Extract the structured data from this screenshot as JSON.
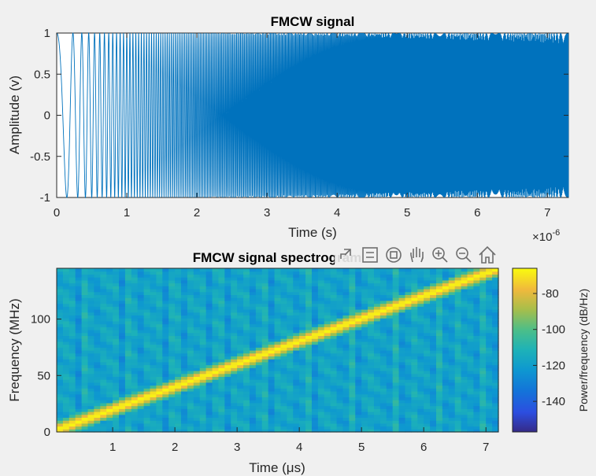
{
  "chart_data": [
    {
      "type": "line",
      "title": "FMCW signal",
      "xlabel": "Time (s)",
      "ylabel": "Amplitude (v)",
      "x_exponent_label": "×10",
      "x_exponent_power": "-6",
      "xlim": [
        0,
        7.3e-06
      ],
      "ylim": [
        -1,
        1
      ],
      "xticks": [
        0,
        1,
        2,
        3,
        4,
        5,
        6,
        7
      ],
      "xtick_labels": [
        "0",
        "1",
        "2",
        "3",
        "4",
        "5",
        "6",
        "7"
      ],
      "yticks": [
        1,
        0.5,
        0,
        -0.5,
        -1
      ],
      "ytick_labels": [
        "1",
        "0.5",
        "0",
        "-0.5",
        "-1"
      ],
      "series": [
        {
          "signal": "cos(2*pi*f(t)*t)",
          "frequency_start_hz": 2000000.0,
          "frequency_end_hz": 148000000.0,
          "duration_s": 7.3e-06,
          "amplitude": 1,
          "color": "#0072bd"
        }
      ]
    },
    {
      "type": "heatmap",
      "title": "FMCW signal spectrogram",
      "xlabel": "Time (μs)",
      "ylabel": "Frequency (MHz)",
      "xlim": [
        0.1,
        7.2
      ],
      "ylim": [
        0,
        145
      ],
      "xticks": [
        1,
        2,
        3,
        4,
        5,
        6,
        7
      ],
      "xtick_labels": [
        "1",
        "2",
        "3",
        "4",
        "5",
        "6",
        "7"
      ],
      "yticks": [
        100,
        50,
        0
      ],
      "ytick_labels": [
        "100",
        "50",
        "0"
      ],
      "ridge": {
        "t_start_us": 0.1,
        "f_start_mhz": 2,
        "t_end_us": 7.2,
        "f_end_mhz": 145
      },
      "colorbar": {
        "label": "Power/frequency (dB/Hz)",
        "range": [
          -157,
          -66
        ],
        "ticks": [
          -80,
          -100,
          -120,
          -140
        ],
        "tick_labels": [
          "-80",
          "-100",
          "-120",
          "-140"
        ],
        "colormap": "parula"
      }
    }
  ],
  "toolbar": {
    "icons": [
      "export-icon",
      "datatips-icon",
      "rotate-icon",
      "pan-icon",
      "zoom-in-icon",
      "zoom-out-icon",
      "home-icon"
    ]
  }
}
